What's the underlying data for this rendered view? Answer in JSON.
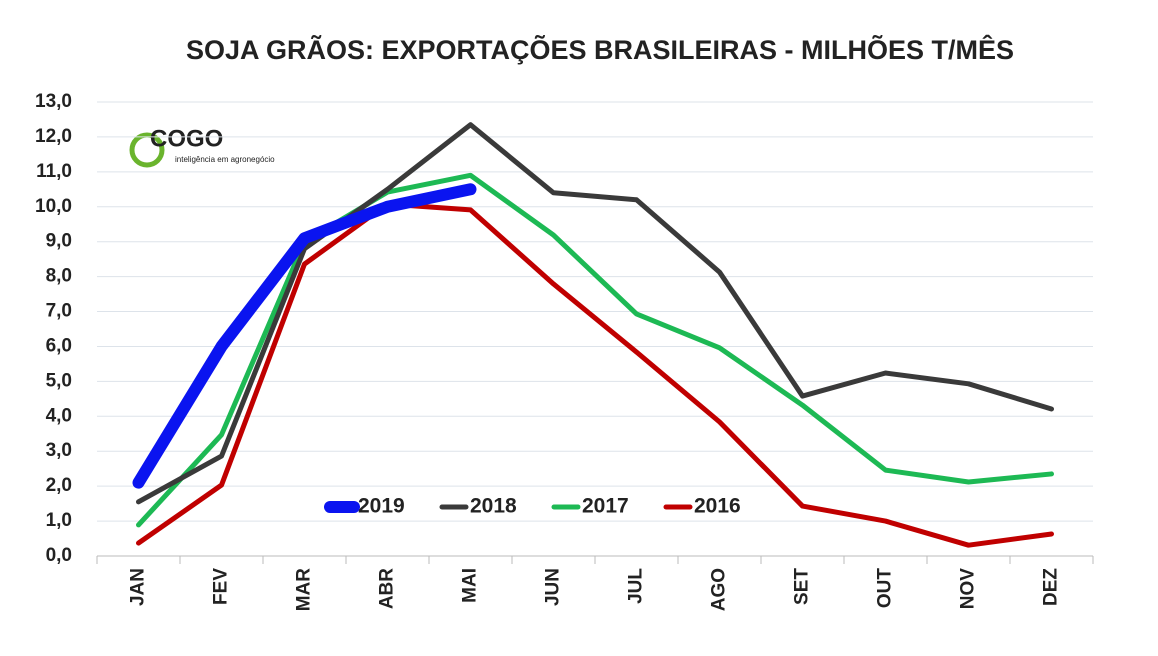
{
  "chart_data": {
    "type": "line",
    "title": "SOJA GRÃOS: EXPORTAÇÕES BRASILEIRAS - MILHÕES T/MÊS",
    "logo": {
      "name": "COGO",
      "tagline": "inteligência em agronegócio"
    },
    "categories": [
      "JAN",
      "FEV",
      "MAR",
      "ABR",
      "MAI",
      "JUN",
      "JUL",
      "AGO",
      "SET",
      "OUT",
      "NOV",
      "DEZ"
    ],
    "series": [
      {
        "name": "2019",
        "color": "#0a14f0",
        "values": [
          2.1,
          6.0,
          9.1,
          10.0,
          10.5,
          null,
          null,
          null,
          null,
          null,
          null,
          null
        ]
      },
      {
        "name": "2018",
        "color": "#3a3a3a",
        "values": [
          1.55,
          2.86,
          8.8,
          10.5,
          12.35,
          10.4,
          10.2,
          8.13,
          4.58,
          5.24,
          4.93,
          4.21
        ]
      },
      {
        "name": "2017",
        "color": "#1db954",
        "values": [
          0.89,
          3.47,
          9.0,
          10.42,
          10.9,
          9.19,
          6.93,
          5.96,
          4.32,
          2.46,
          2.12,
          2.35
        ]
      },
      {
        "name": "2016",
        "color": "#c00000",
        "values": [
          0.37,
          2.03,
          8.36,
          10.08,
          9.91,
          7.79,
          5.84,
          3.84,
          1.43,
          1.0,
          0.31,
          0.63
        ]
      }
    ],
    "ylim": [
      0,
      13
    ],
    "yticks": [
      {
        "value": 0,
        "label": "0,0"
      },
      {
        "value": 1,
        "label": "1,0"
      },
      {
        "value": 2,
        "label": "2,0"
      },
      {
        "value": 3,
        "label": "3,0"
      },
      {
        "value": 4,
        "label": "4,0"
      },
      {
        "value": 5,
        "label": "5,0"
      },
      {
        "value": 6,
        "label": "6,0"
      },
      {
        "value": 7,
        "label": "7,0"
      },
      {
        "value": 8,
        "label": "8,0"
      },
      {
        "value": 9,
        "label": "9,0"
      },
      {
        "value": 10,
        "label": "10,0"
      },
      {
        "value": 11,
        "label": "11,0"
      },
      {
        "value": 12,
        "label": "12,0"
      },
      {
        "value": 13,
        "label": "13,0"
      }
    ],
    "grid": true
  }
}
